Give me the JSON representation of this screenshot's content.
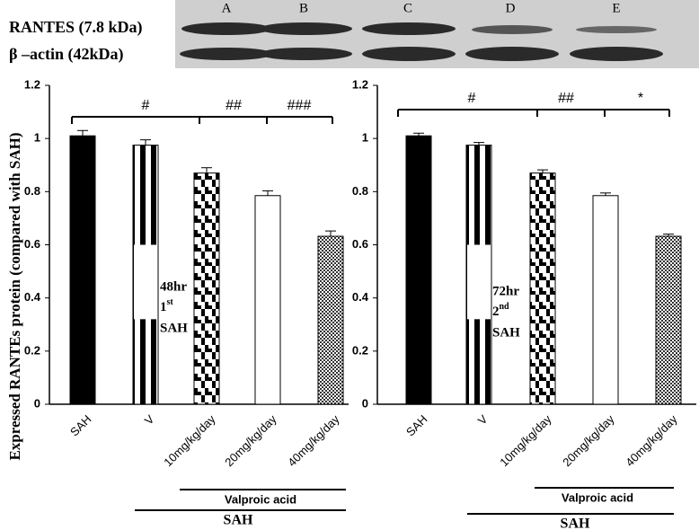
{
  "blot": {
    "lanes": [
      "A",
      "B",
      "C",
      "D",
      "E"
    ],
    "rows": [
      "RANTES (7.8 kDa)",
      "β –actin (42kDa)"
    ]
  },
  "chart_data": [
    {
      "type": "bar",
      "ylabel": "Expressed RANTEs protein  (compared with SAH)",
      "categories": [
        "SAH",
        "V",
        "10mg/kg/day",
        "20mg/kg/day",
        "40mg/kg/day"
      ],
      "values": [
        1.01,
        0.975,
        0.87,
        0.785,
        0.632
      ],
      "errors": [
        0.02,
        0.02,
        0.02,
        0.018,
        0.02
      ],
      "ylim": [
        0,
        1.2
      ],
      "yticks": [
        0,
        0.2,
        0.4,
        0.6,
        0.8,
        1,
        1.2
      ],
      "significance": [
        "#",
        "##",
        "###"
      ],
      "time_label": "48hr",
      "ordinal": "1",
      "ordinal_suffix": "st",
      "event": "SAH",
      "group_labels": [
        "Valproic acid",
        "SAH"
      ]
    },
    {
      "type": "bar",
      "categories": [
        "SAH",
        "V",
        "10mg/kg/day",
        "20mg/kg/day",
        "40mg/kg/day"
      ],
      "values": [
        1.01,
        0.975,
        0.87,
        0.785,
        0.632
      ],
      "errors": [
        0.01,
        0.01,
        0.012,
        0.01,
        0.008
      ],
      "ylim": [
        0,
        1.2
      ],
      "yticks": [
        0,
        0.2,
        0.4,
        0.6,
        0.8,
        1,
        1.2
      ],
      "significance": [
        "#",
        "##",
        "*"
      ],
      "time_label": "72hr",
      "ordinal": "2",
      "ordinal_suffix": "nd",
      "event": "SAH",
      "group_labels": [
        "Valproic acid",
        "SAH"
      ]
    }
  ]
}
